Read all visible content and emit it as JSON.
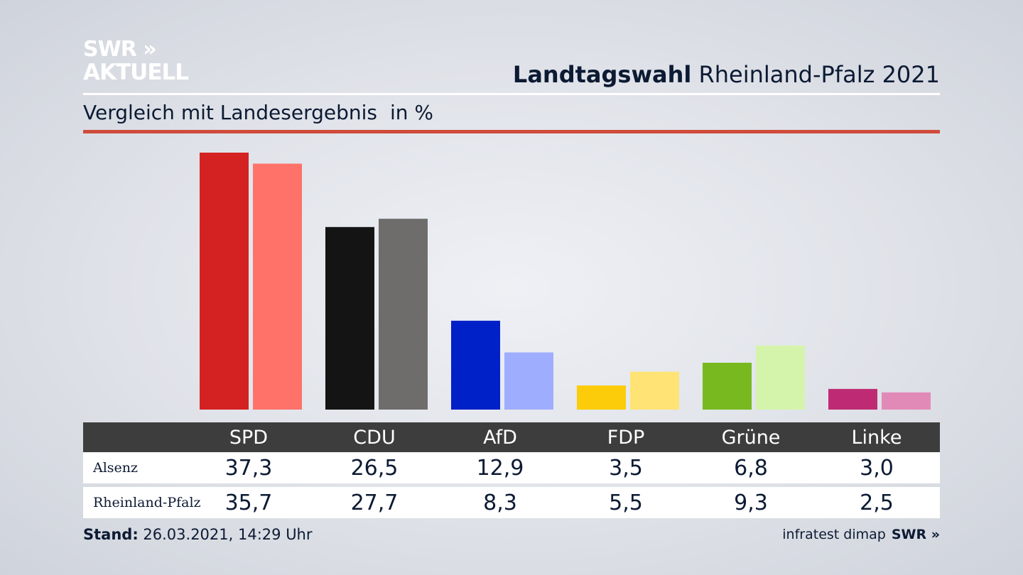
{
  "logo": {
    "line1": "SWR »",
    "line2": "AKTUELL"
  },
  "header": {
    "title_bold": "Landtagswahl",
    "title_rest": "Rheinland-Pfalz 2021",
    "subtitle": "Vergleich mit Landesergebnis",
    "unit": "in %"
  },
  "chart_data": {
    "type": "bar",
    "title": "Landtagswahl Rheinland-Pfalz 2021",
    "subtitle": "Vergleich mit Landesergebnis in %",
    "categories": [
      "SPD",
      "CDU",
      "AfD",
      "FDP",
      "Grüne",
      "Linke"
    ],
    "series": [
      {
        "name": "Alsenz",
        "values": [
          37.3,
          26.5,
          12.9,
          3.5,
          6.8,
          3.0
        ],
        "colors": [
          "#d42222",
          "#141414",
          "#0021c7",
          "#fccc0a",
          "#78b91f",
          "#be2b74"
        ]
      },
      {
        "name": "Rheinland-Pfalz",
        "values": [
          35.7,
          27.7,
          8.3,
          5.5,
          9.3,
          2.5
        ],
        "colors": [
          "#ff726a",
          "#6f6d6b",
          "#9fadff",
          "#ffe374",
          "#d5f4ab",
          "#e28ab7"
        ]
      }
    ],
    "ylim": [
      0,
      37.3
    ],
    "grid": false
  },
  "table": {
    "headers": [
      "SPD",
      "CDU",
      "AfD",
      "FDP",
      "Grüne",
      "Linke"
    ],
    "rows": [
      {
        "label": "Alsenz",
        "values": [
          "37,3",
          "26,5",
          "12,9",
          "3,5",
          "6,8",
          "3,0"
        ]
      },
      {
        "label": "Rheinland-Pfalz",
        "values": [
          "35,7",
          "27,7",
          "8,3",
          "5,5",
          "9,3",
          "2,5"
        ]
      }
    ]
  },
  "footer": {
    "stand_label": "Stand:",
    "stand_value": "26.03.2021, 14:29 Uhr",
    "source": "infratest dimap",
    "brand": "SWR »"
  }
}
